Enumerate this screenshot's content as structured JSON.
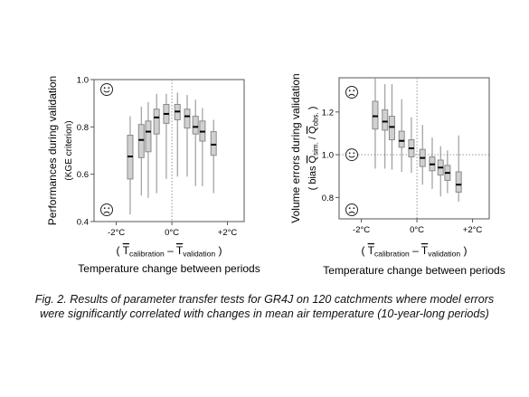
{
  "chart_data": [
    {
      "type": "box",
      "ylabel_line1": "Performances during validation",
      "ylabel_line2": "(KGE criterion)",
      "ylim": [
        0.4,
        1.0
      ],
      "yticks": [
        0.4,
        0.6,
        0.8,
        1.0
      ],
      "ytick_labels": [
        "0.4",
        "0.6",
        "0.8",
        "1.0"
      ],
      "xlim": [
        -2.8,
        2.6
      ],
      "xticks": [
        -2,
        0,
        2
      ],
      "xtick_labels": [
        "-2°C",
        "0°C",
        "+2°C"
      ],
      "reference_line": {
        "x": 0
      },
      "xlabel_formula": {
        "open": "(",
        "a": "T",
        "a_sub": "calibration",
        "op": "–",
        "b": "T",
        "b_sub": "validation",
        "close": ")"
      },
      "xlabel": "Temperature change between periods",
      "icons": {
        "top": "happy-face",
        "bottom": "sad-face"
      },
      "boxes": [
        {
          "x": -1.5,
          "whisker_low": 0.43,
          "q1": 0.58,
          "median": 0.675,
          "q3": 0.765,
          "whisker_high": 0.845
        },
        {
          "x": -1.1,
          "whisker_low": 0.51,
          "q1": 0.67,
          "median": 0.745,
          "q3": 0.81,
          "whisker_high": 0.885
        },
        {
          "x": -0.85,
          "whisker_low": 0.5,
          "q1": 0.695,
          "median": 0.78,
          "q3": 0.825,
          "whisker_high": 0.905
        },
        {
          "x": -0.55,
          "whisker_low": 0.52,
          "q1": 0.77,
          "median": 0.84,
          "q3": 0.875,
          "whisker_high": 0.94
        },
        {
          "x": -0.2,
          "whisker_low": 0.58,
          "q1": 0.815,
          "median": 0.855,
          "q3": 0.895,
          "whisker_high": 0.94
        },
        {
          "x": 0.2,
          "whisker_low": 0.59,
          "q1": 0.83,
          "median": 0.865,
          "q3": 0.895,
          "whisker_high": 0.945
        },
        {
          "x": 0.55,
          "whisker_low": 0.59,
          "q1": 0.795,
          "median": 0.845,
          "q3": 0.875,
          "whisker_high": 0.935
        },
        {
          "x": 0.85,
          "whisker_low": 0.55,
          "q1": 0.77,
          "median": 0.8,
          "q3": 0.845,
          "whisker_high": 0.915
        },
        {
          "x": 1.1,
          "whisker_low": 0.55,
          "q1": 0.74,
          "median": 0.78,
          "q3": 0.825,
          "whisker_high": 0.88
        },
        {
          "x": 1.5,
          "whisker_low": 0.52,
          "q1": 0.68,
          "median": 0.725,
          "q3": 0.78,
          "whisker_high": 0.83
        }
      ]
    },
    {
      "type": "box",
      "ylabel_line1": "Volume errors during validation",
      "ylabel_line2": {
        "open": "( bias",
        "num": "Q",
        "num_sub": "sim.",
        "slash": "/",
        "den": "Q",
        "den_sub": "obs.",
        "close": ")"
      },
      "ylim": [
        0.7,
        1.36
      ],
      "yticks": [
        0.8,
        1.0,
        1.2
      ],
      "ytick_labels": [
        "0.8",
        "1.0",
        "1.2"
      ],
      "xlim": [
        -2.8,
        2.6
      ],
      "xticks": [
        -2,
        0,
        2
      ],
      "xtick_labels": [
        "-2°C",
        "0°C",
        "+2°C"
      ],
      "reference_line": {
        "x": 0,
        "y": 1.0
      },
      "xlabel_formula": {
        "open": "(",
        "a": "T",
        "a_sub": "calibration",
        "op": "–",
        "b": "T",
        "b_sub": "validation",
        "close": ")"
      },
      "xlabel": "Temperature change between periods",
      "icons": {
        "top": "sad-face",
        "middle": "happy-face",
        "bottom": "sad-face"
      },
      "boxes": [
        {
          "x": -1.5,
          "whisker_low": 0.935,
          "q1": 1.12,
          "median": 1.18,
          "q3": 1.25,
          "whisker_high": 1.36
        },
        {
          "x": -1.15,
          "whisker_low": 0.935,
          "q1": 1.115,
          "median": 1.155,
          "q3": 1.21,
          "whisker_high": 1.33
        },
        {
          "x": -0.9,
          "whisker_low": 0.93,
          "q1": 1.07,
          "median": 1.13,
          "q3": 1.18,
          "whisker_high": 1.33
        },
        {
          "x": -0.55,
          "whisker_low": 0.92,
          "q1": 1.035,
          "median": 1.065,
          "q3": 1.11,
          "whisker_high": 1.26
        },
        {
          "x": -0.2,
          "whisker_low": 0.915,
          "q1": 0.99,
          "median": 1.03,
          "q3": 1.07,
          "whisker_high": 1.175
        },
        {
          "x": 0.2,
          "whisker_low": 0.86,
          "q1": 0.945,
          "median": 0.985,
          "q3": 1.025,
          "whisker_high": 1.14
        },
        {
          "x": 0.55,
          "whisker_low": 0.84,
          "q1": 0.925,
          "median": 0.955,
          "q3": 0.99,
          "whisker_high": 1.08
        },
        {
          "x": 0.85,
          "whisker_low": 0.805,
          "q1": 0.905,
          "median": 0.94,
          "q3": 0.975,
          "whisker_high": 1.04
        },
        {
          "x": 1.1,
          "whisker_low": 0.82,
          "q1": 0.88,
          "median": 0.915,
          "q3": 0.95,
          "whisker_high": 1.02
        },
        {
          "x": 1.5,
          "whisker_low": 0.78,
          "q1": 0.825,
          "median": 0.86,
          "q3": 0.92,
          "whisker_high": 1.09
        }
      ]
    }
  ],
  "caption": {
    "line1": "Fig. 2. Results of parameter transfer tests for GR4J on 120 catchments where model errors",
    "line2": "were significantly correlated with changes in mean air temperature (10-year-long periods)"
  },
  "colors": {
    "box_fill": "#d0d0d0",
    "box_stroke": "#8a8a8a",
    "median": "#000000",
    "reference": "#888888"
  }
}
